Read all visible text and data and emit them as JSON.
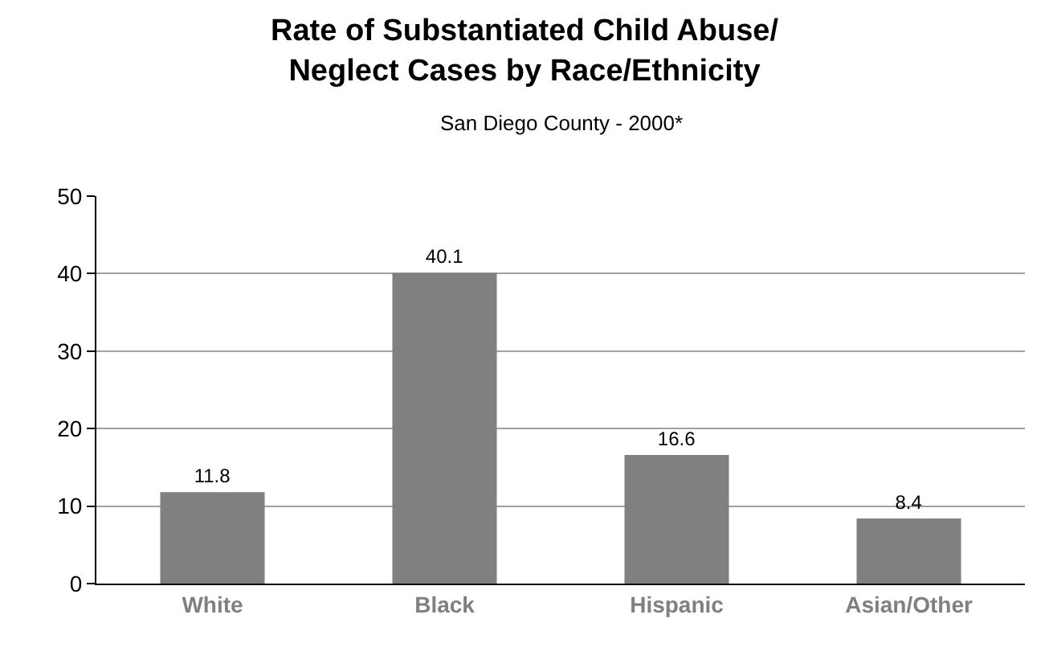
{
  "chart_data": {
    "type": "bar",
    "title": "Rate of Substantiated Child Abuse/\nNeglect Cases by Race/Ethnicity",
    "subtitle": "San Diego County - 2000*",
    "categories": [
      "White",
      "Black",
      "Hispanic",
      "Asian/Other"
    ],
    "values": [
      11.8,
      40.1,
      16.6,
      8.4
    ],
    "color": "#808080",
    "ylim": [
      0,
      50
    ],
    "yticks": [
      0,
      10,
      20,
      30,
      40,
      50
    ],
    "grid": "y",
    "data_labels": true,
    "legend": false
  }
}
